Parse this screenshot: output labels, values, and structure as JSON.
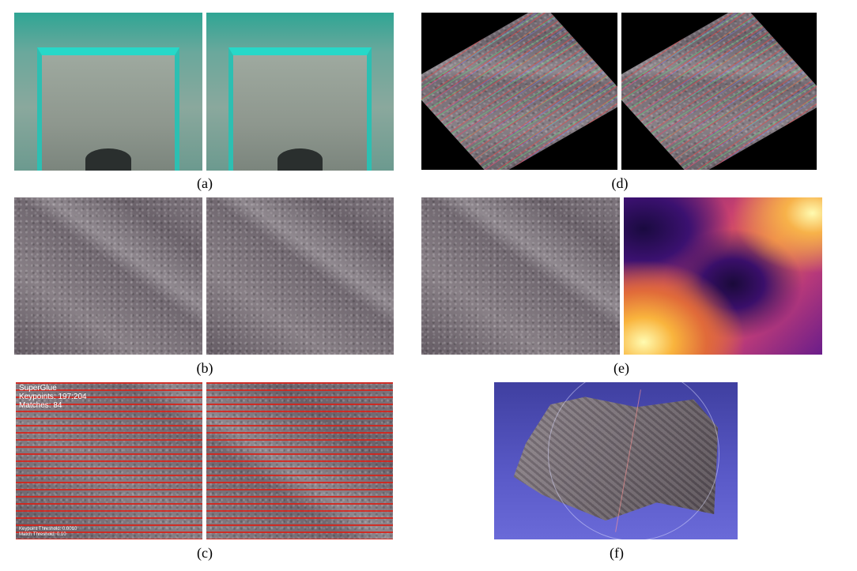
{
  "figure": {
    "captions": {
      "a": "(a)",
      "b": "(b)",
      "c": "(c)",
      "d": "(d)",
      "e": "(e)",
      "f": "(f)"
    },
    "panel_c": {
      "title": "SuperGlue",
      "keypoints": "Keypoints: 197:204",
      "matches": "Matches: 84",
      "footer_line1": "Keypoint Threshold: 0.0010",
      "footer_line2": "Match Threshold: 0.10"
    }
  }
}
